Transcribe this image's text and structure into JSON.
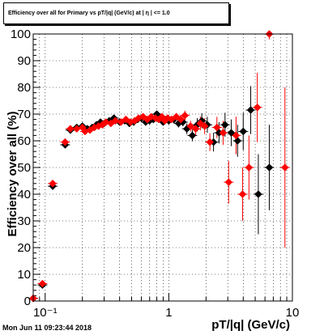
{
  "chart_data": {
    "type": "scatter",
    "title": "Efficiency over all for Primary vs pT/|q| (GeV/c) at | η | <= 1.0",
    "xlabel": "pT/|q| (GeV/c)",
    "ylabel": "Efficiency over all (%)",
    "xscale": "log",
    "xlim": [
      0.08,
      10
    ],
    "ylim": [
      0,
      100
    ],
    "grid": true,
    "x_tick_labels": [
      "10⁻¹",
      "1",
      "10"
    ],
    "y_tick_labels": [
      "0",
      "10",
      "20",
      "30",
      "40",
      "50",
      "60",
      "70",
      "80",
      "90",
      "100"
    ],
    "series": [
      {
        "color": "#000000",
        "marker": "diamond",
        "points": [
          {
            "x": 0.08,
            "y": 1,
            "err": 0.5
          },
          {
            "x": 0.095,
            "y": 6,
            "err": 0.8
          },
          {
            "x": 0.115,
            "y": 43,
            "err": 1.2
          },
          {
            "x": 0.145,
            "y": 58.5,
            "err": 1.2
          },
          {
            "x": 0.16,
            "y": 64,
            "err": 1.0
          },
          {
            "x": 0.18,
            "y": 65,
            "err": 1.0
          },
          {
            "x": 0.2,
            "y": 65.5,
            "err": 1.0
          },
          {
            "x": 0.22,
            "y": 64.5,
            "err": 1.0
          },
          {
            "x": 0.24,
            "y": 65,
            "err": 1.0
          },
          {
            "x": 0.26,
            "y": 66,
            "err": 1.0
          },
          {
            "x": 0.28,
            "y": 67,
            "err": 1.0
          },
          {
            "x": 0.3,
            "y": 66.5,
            "err": 1.0
          },
          {
            "x": 0.33,
            "y": 67.5,
            "err": 1.0
          },
          {
            "x": 0.36,
            "y": 68.5,
            "err": 1.0
          },
          {
            "x": 0.4,
            "y": 67,
            "err": 1.0
          },
          {
            "x": 0.44,
            "y": 67.5,
            "err": 1.0
          },
          {
            "x": 0.48,
            "y": 66.5,
            "err": 1.0
          },
          {
            "x": 0.52,
            "y": 67,
            "err": 1.0
          },
          {
            "x": 0.56,
            "y": 68,
            "err": 1.0
          },
          {
            "x": 0.6,
            "y": 68.5,
            "err": 1.0
          },
          {
            "x": 0.65,
            "y": 67,
            "err": 1.0
          },
          {
            "x": 0.7,
            "y": 67.5,
            "err": 1.0
          },
          {
            "x": 0.75,
            "y": 68,
            "err": 1.0
          },
          {
            "x": 0.8,
            "y": 70,
            "err": 1.2
          },
          {
            "x": 0.85,
            "y": 68.5,
            "err": 1.2
          },
          {
            "x": 0.9,
            "y": 67,
            "err": 1.2
          },
          {
            "x": 0.95,
            "y": 68,
            "err": 1.2
          },
          {
            "x": 1.0,
            "y": 67.5,
            "err": 1.2
          },
          {
            "x": 1.1,
            "y": 68,
            "err": 1.3
          },
          {
            "x": 1.2,
            "y": 66.5,
            "err": 1.5
          },
          {
            "x": 1.3,
            "y": 67,
            "err": 1.6
          },
          {
            "x": 1.4,
            "y": 64.5,
            "err": 2.0
          },
          {
            "x": 1.55,
            "y": 62,
            "err": 2.2
          },
          {
            "x": 1.7,
            "y": 66,
            "err": 2.5
          },
          {
            "x": 1.85,
            "y": 67.5,
            "err": 2.8
          },
          {
            "x": 2.05,
            "y": 66,
            "err": 3.0
          },
          {
            "x": 2.3,
            "y": 59.5,
            "err": 3.5
          },
          {
            "x": 2.55,
            "y": 63,
            "err": 4.0
          },
          {
            "x": 2.85,
            "y": 66,
            "err": 4.5
          },
          {
            "x": 3.2,
            "y": 63,
            "err": 5.0
          },
          {
            "x": 3.6,
            "y": 60,
            "err": 6.0
          },
          {
            "x": 4.0,
            "y": 63.5,
            "err": 7.0
          },
          {
            "x": 4.6,
            "y": 71.5,
            "err": 9.0
          },
          {
            "x": 5.3,
            "y": 40,
            "err": 15.0
          },
          {
            "x": 6.5,
            "y": 50,
            "err": 16.0
          }
        ]
      },
      {
        "color": "#ff0000",
        "marker": "diamond",
        "points": [
          {
            "x": 0.08,
            "y": 1,
            "err": 0.5
          },
          {
            "x": 0.095,
            "y": 6.5,
            "err": 0.8
          },
          {
            "x": 0.115,
            "y": 44,
            "err": 1.2
          },
          {
            "x": 0.145,
            "y": 59.5,
            "err": 1.2
          },
          {
            "x": 0.16,
            "y": 64.5,
            "err": 1.0
          },
          {
            "x": 0.18,
            "y": 64.5,
            "err": 1.0
          },
          {
            "x": 0.2,
            "y": 65,
            "err": 1.0
          },
          {
            "x": 0.21,
            "y": 63.5,
            "err": 1.0
          },
          {
            "x": 0.23,
            "y": 64,
            "err": 1.0
          },
          {
            "x": 0.25,
            "y": 65,
            "err": 1.0
          },
          {
            "x": 0.27,
            "y": 65.5,
            "err": 1.0
          },
          {
            "x": 0.29,
            "y": 66,
            "err": 1.0
          },
          {
            "x": 0.31,
            "y": 67,
            "err": 1.0
          },
          {
            "x": 0.34,
            "y": 66.5,
            "err": 1.0
          },
          {
            "x": 0.37,
            "y": 67.5,
            "err": 1.0
          },
          {
            "x": 0.41,
            "y": 67,
            "err": 1.0
          },
          {
            "x": 0.45,
            "y": 68,
            "err": 1.0
          },
          {
            "x": 0.49,
            "y": 67,
            "err": 1.0
          },
          {
            "x": 0.53,
            "y": 67.5,
            "err": 1.0
          },
          {
            "x": 0.57,
            "y": 68.5,
            "err": 1.0
          },
          {
            "x": 0.62,
            "y": 69,
            "err": 1.0
          },
          {
            "x": 0.67,
            "y": 68,
            "err": 1.0
          },
          {
            "x": 0.72,
            "y": 69,
            "err": 1.0
          },
          {
            "x": 0.78,
            "y": 68.5,
            "err": 1.0
          },
          {
            "x": 0.83,
            "y": 68,
            "err": 1.2
          },
          {
            "x": 0.88,
            "y": 69,
            "err": 1.2
          },
          {
            "x": 0.93,
            "y": 67.5,
            "err": 1.2
          },
          {
            "x": 0.98,
            "y": 68.5,
            "err": 1.2
          },
          {
            "x": 1.05,
            "y": 68,
            "err": 1.3
          },
          {
            "x": 1.15,
            "y": 69,
            "err": 1.4
          },
          {
            "x": 1.25,
            "y": 68,
            "err": 1.5
          },
          {
            "x": 1.35,
            "y": 69.5,
            "err": 1.8
          },
          {
            "x": 1.5,
            "y": 65.5,
            "err": 2.0
          },
          {
            "x": 1.65,
            "y": 64.5,
            "err": 2.3
          },
          {
            "x": 1.8,
            "y": 66.5,
            "err": 2.6
          },
          {
            "x": 1.95,
            "y": 65.5,
            "err": 3.0
          },
          {
            "x": 2.15,
            "y": 59.5,
            "err": 3.3
          },
          {
            "x": 2.45,
            "y": 65,
            "err": 4.0
          },
          {
            "x": 2.75,
            "y": 63,
            "err": 4.5
          },
          {
            "x": 3.05,
            "y": 44.5,
            "err": 8.0
          },
          {
            "x": 3.5,
            "y": 62,
            "err": 7.0
          },
          {
            "x": 3.95,
            "y": 40,
            "err": 10.0
          },
          {
            "x": 4.45,
            "y": 50,
            "err": 12.0
          },
          {
            "x": 5.2,
            "y": 72.5,
            "err": 13.0
          },
          {
            "x": 6.5,
            "y": 100,
            "err": 2.0
          },
          {
            "x": 8.7,
            "y": 50,
            "err": 30.0
          }
        ]
      }
    ]
  },
  "footer_text": "Mon Jun 11 09:23:44 2018"
}
